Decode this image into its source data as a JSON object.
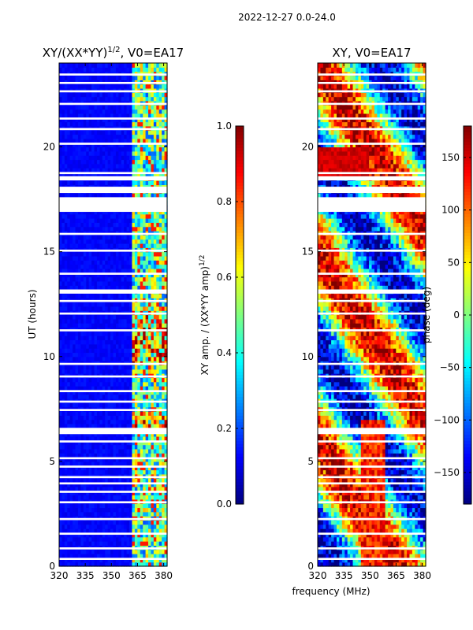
{
  "chart_data": {
    "suptitle": "2022-12-27 0.0-24.0",
    "xlabel": "frequency (MHz)",
    "ylabel": "UT (hours)",
    "panels": [
      {
        "type": "heatmap",
        "title_main": "XY/(XX*YY)",
        "title_exp": "1/2",
        "title_suffix": ", V0=EA17",
        "x_range": [
          320,
          382
        ],
        "y_range": [
          0,
          24
        ],
        "x_ticks": [
          320,
          335,
          350,
          365,
          380
        ],
        "y_ticks": [
          0,
          5,
          10,
          15,
          20
        ],
        "colorbar": {
          "label_main": "XY amp. / (XX*YY amp)",
          "label_exp": "1/2",
          "range": [
            0.0,
            1.0
          ],
          "ticks": [
            "0.0",
            "0.2",
            "0.4",
            "0.6",
            "0.8",
            "1.0"
          ],
          "tick_values": [
            0.0,
            0.2,
            0.4,
            0.6,
            0.8,
            1.0
          ]
        }
      },
      {
        "type": "heatmap",
        "title": "XY, V0=EA17",
        "x_range": [
          320,
          382
        ],
        "y_range": [
          0,
          24
        ],
        "x_ticks": [
          320,
          335,
          350,
          365,
          380
        ],
        "y_ticks": [
          0,
          5,
          10,
          15,
          20
        ],
        "colorbar": {
          "label": "phase (deg)",
          "range": [
            -180,
            180
          ],
          "ticks": [
            "150",
            "100",
            "50",
            "0",
            "−50",
            "−100",
            "−150"
          ],
          "tick_values": [
            150,
            100,
            50,
            0,
            -50,
            -100,
            -150
          ]
        }
      }
    ],
    "gap_bands_hours": [
      [
        0.3,
        0.4
      ],
      [
        0.8,
        0.9
      ],
      [
        1.5,
        1.6
      ],
      [
        2.2,
        2.3
      ],
      [
        3.0,
        3.1
      ],
      [
        3.5,
        3.6
      ],
      [
        3.9,
        4.0
      ],
      [
        4.2,
        4.3
      ],
      [
        4.7,
        4.8
      ],
      [
        5.1,
        5.2
      ],
      [
        5.9,
        6.0
      ],
      [
        6.3,
        6.6
      ],
      [
        7.4,
        7.5
      ],
      [
        7.8,
        7.9
      ],
      [
        8.3,
        8.4
      ],
      [
        9.0,
        9.1
      ],
      [
        9.6,
        9.7
      ],
      [
        11.2,
        11.3
      ],
      [
        12.0,
        12.1
      ],
      [
        12.6,
        12.7
      ],
      [
        13.0,
        13.2
      ],
      [
        13.9,
        14.0
      ],
      [
        15.0,
        15.1
      ],
      [
        15.8,
        15.9
      ],
      [
        16.9,
        17.6
      ],
      [
        17.8,
        18.1
      ],
      [
        18.4,
        18.6
      ],
      [
        18.7,
        18.8
      ],
      [
        20.1,
        20.2
      ],
      [
        20.8,
        20.9
      ],
      [
        21.3,
        21.4
      ],
      [
        22.0,
        22.1
      ],
      [
        22.6,
        22.7
      ],
      [
        23.0,
        23.1
      ],
      [
        23.4,
        23.5
      ]
    ]
  }
}
